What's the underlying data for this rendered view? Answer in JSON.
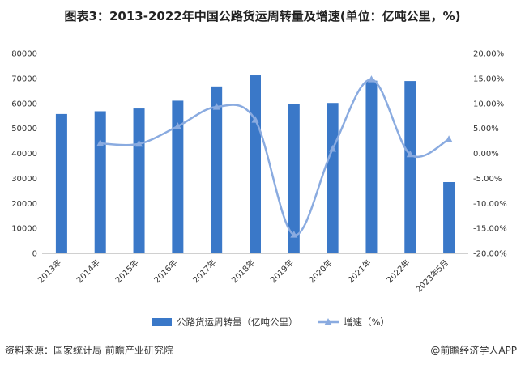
{
  "title": "图表3：2013-2022年中国公路货运周转量及增速(单位：亿吨公里，%)",
  "source": "资料来源：国家统计局 前瞻产业研究院",
  "credit": "@前瞻经济学人APP",
  "colors": {
    "bar": "#3a78c8",
    "line": "#8aabe0"
  },
  "chart_data": {
    "type": "bar",
    "categories": [
      "2013年",
      "2014年",
      "2015年",
      "2016年",
      "2017年",
      "2018年",
      "2019年",
      "2020年",
      "2021年",
      "2022年",
      "2023年5月"
    ],
    "series": [
      {
        "name": "公路货运周转量（亿吨公里）",
        "type": "bar",
        "axis": "left",
        "values": [
          55738,
          56847,
          57956,
          61080,
          66772,
          71249,
          59636,
          60172,
          69088,
          68958,
          28500
        ]
      },
      {
        "name": "增速（%）",
        "type": "line",
        "axis": "right",
        "values": [
          null,
          2.0,
          1.9,
          5.4,
          9.3,
          6.7,
          -16.3,
          0.9,
          14.8,
          -0.2,
          2.8
        ]
      }
    ],
    "yleft": {
      "min": 0,
      "max": 80000,
      "step": 10000,
      "ticks": [
        "0",
        "10000",
        "20000",
        "30000",
        "40000",
        "50000",
        "60000",
        "70000",
        "80000"
      ]
    },
    "yright": {
      "min": -20,
      "max": 20,
      "step": 5,
      "ticks": [
        "-20.00%",
        "-15.00%",
        "-10.00%",
        "-5.00%",
        "0.00%",
        "5.00%",
        "10.00%",
        "15.00%",
        "20.00%"
      ]
    },
    "grid": false,
    "legend": "bottom"
  }
}
